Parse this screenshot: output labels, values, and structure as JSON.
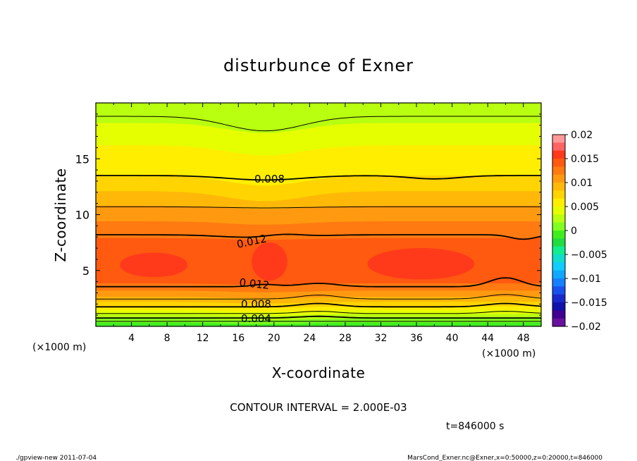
{
  "chart_data": {
    "type": "heatmap",
    "title": "disturbunce of Exner",
    "xlabel": "X-coordinate",
    "ylabel": "Z-coordinate",
    "x_unit": "(×1000 m)",
    "x_unit_right": "(×1000 m)",
    "xlim": [
      0,
      50
    ],
    "ylim": [
      0,
      20
    ],
    "x_ticks": [
      4,
      8,
      12,
      16,
      20,
      24,
      28,
      32,
      36,
      40,
      44,
      48
    ],
    "y_ticks": [
      5,
      10,
      15
    ],
    "x_tick_labels": [
      "4",
      "8",
      "12",
      "16",
      "20",
      "24",
      "28",
      "32",
      "36",
      "40",
      "44",
      "48"
    ],
    "y_tick_labels": [
      "5",
      "10",
      "15"
    ],
    "contour_interval_text": "CONTOUR INTERVAL = 2.000E-03",
    "time_text": "t=846000 s",
    "colorbar": {
      "labels": [
        "0.02",
        "0.015",
        "0.01",
        "0.005",
        "0",
        "−0.005",
        "−0.01",
        "−0.015",
        "−0.02"
      ],
      "colors_top_to_bottom": [
        "#ff9898",
        "#ff6464",
        "#ff3a1a",
        "#ff5a10",
        "#ff7a10",
        "#ff9a10",
        "#ffb808",
        "#ffd400",
        "#ffee00",
        "#e6ff00",
        "#b8ff10",
        "#80ff20",
        "#40ee20",
        "#20dd40",
        "#10ee90",
        "#10ddcc",
        "#10ccff",
        "#10a8ff",
        "#1480ff",
        "#1850ee",
        "#1828cc",
        "#1010aa",
        "#400090",
        "#6a10a0"
      ]
    },
    "contour_labels": [
      {
        "text": "0.008",
        "x": 19.5,
        "z": 13.2
      },
      {
        "text": "0.012",
        "x": 17.5,
        "z": 7.6
      },
      {
        "text": "0.012",
        "x": 17.8,
        "z": 3.8
      },
      {
        "text": "0.008",
        "x": 18.0,
        "z": 2.0
      },
      {
        "text": "0.004",
        "x": 18.0,
        "z": 0.7
      }
    ],
    "contour_values": [
      0.002,
      0.004,
      0.006,
      0.008,
      0.01,
      0.012
    ],
    "max_value_approx": 0.0145
  },
  "footer": {
    "left": "./gpview-new   2011-07-04",
    "right": "MarsCond_Exner.nc@Exner,x=0:50000,z=0:20000,t=846000"
  },
  "colors": {
    "contour_line": "#000000",
    "plot_frame": "#000000"
  }
}
